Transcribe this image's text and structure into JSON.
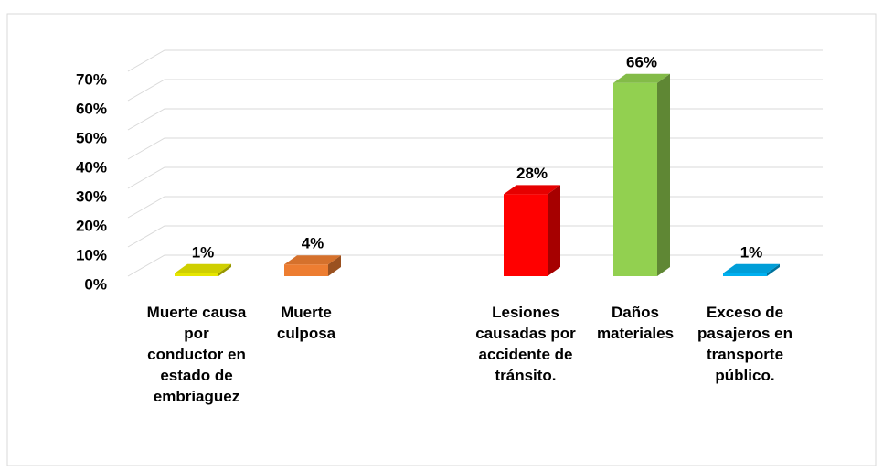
{
  "chart_data": {
    "type": "bar3d",
    "categories": [
      "Muerte causa por conductor en estado de embriaguez",
      "Muerte culposa",
      null,
      "Lesiones causadas por accidente de tránsito.",
      "Daños materiales",
      "Exceso de pasajeros en transporte público."
    ],
    "values": [
      1,
      4,
      null,
      28,
      66,
      1
    ],
    "value_labels": [
      "1%",
      "4%",
      null,
      "28%",
      "66%",
      "1%"
    ],
    "colors": [
      "#e6e600",
      "#ed7d31",
      null,
      "#ff0000",
      "#92d050",
      "#00b0f0"
    ],
    "ylim": [
      0,
      70
    ],
    "yticks": [
      {
        "value": 0,
        "label": "0%"
      },
      {
        "value": 10,
        "label": "10%"
      },
      {
        "value": 20,
        "label": "20%"
      },
      {
        "value": 30,
        "label": "30%"
      },
      {
        "value": 40,
        "label": "40%"
      },
      {
        "value": 50,
        "label": "50%"
      },
      {
        "value": 60,
        "label": "60%"
      },
      {
        "value": 70,
        "label": "70%"
      }
    ],
    "grid": true
  }
}
